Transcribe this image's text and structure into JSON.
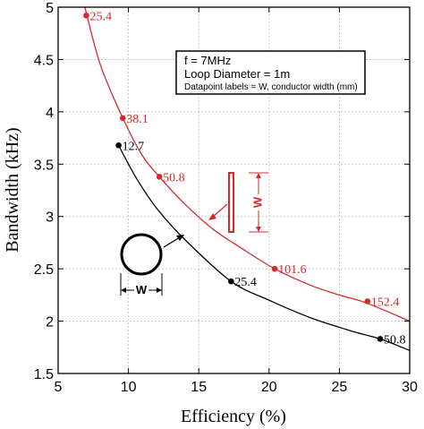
{
  "chart_data": {
    "type": "scatter",
    "xlabel": "Efficiency (%)",
    "ylabel": "Bandwidth (kHz)",
    "xlim": [
      5,
      30
    ],
    "ylim": [
      1.5,
      5
    ],
    "x_ticks": [
      "5",
      "10",
      "15",
      "20",
      "25",
      "30"
    ],
    "y_ticks": [
      "1.5",
      "2",
      "2.5",
      "3",
      "3.5",
      "4",
      "4.5",
      "5"
    ],
    "grid": true,
    "annotation_box": {
      "lines": [
        "f = 7MHz",
        "Loop Diameter = 1m"
      ],
      "note": "Datapoint labels = W, conductor width (mm)"
    },
    "series": [
      {
        "color": "#d42a2a",
        "icon": "flat-strip-conductor-icon",
        "icon_label": "W",
        "points": [
          {
            "x": 7.0,
            "y": 4.92,
            "label": "25.4"
          },
          {
            "x": 9.6,
            "y": 3.94,
            "label": "38.1"
          },
          {
            "x": 12.2,
            "y": 3.38,
            "label": "50.8"
          },
          {
            "x": 20.4,
            "y": 2.5,
            "label": "101.6"
          },
          {
            "x": 27.0,
            "y": 2.19,
            "label": "152.4"
          }
        ],
        "fit_curve": [
          [
            6.9,
            5.0
          ],
          [
            8,
            4.45
          ],
          [
            9.6,
            3.94
          ],
          [
            11,
            3.58
          ],
          [
            12.2,
            3.38
          ],
          [
            14,
            3.12
          ],
          [
            16,
            2.88
          ],
          [
            18,
            2.7
          ],
          [
            20.4,
            2.5
          ],
          [
            23,
            2.34
          ],
          [
            25,
            2.25
          ],
          [
            27,
            2.17
          ],
          [
            30,
            2.0
          ]
        ]
      },
      {
        "color": "#000000",
        "icon": "round-conductor-icon",
        "icon_label": "W",
        "points": [
          {
            "x": 9.3,
            "y": 3.68,
            "label": "12.7"
          },
          {
            "x": 17.3,
            "y": 2.38,
            "label": "25.4"
          },
          {
            "x": 27.9,
            "y": 1.83,
            "label": "50.8"
          }
        ],
        "fit_curve": [
          [
            9.3,
            3.68
          ],
          [
            10.5,
            3.38
          ],
          [
            12,
            3.08
          ],
          [
            14,
            2.78
          ],
          [
            17.3,
            2.38
          ],
          [
            20,
            2.2
          ],
          [
            23,
            2.03
          ],
          [
            26,
            1.9
          ],
          [
            27.9,
            1.83
          ],
          [
            30,
            1.72
          ]
        ]
      }
    ]
  }
}
